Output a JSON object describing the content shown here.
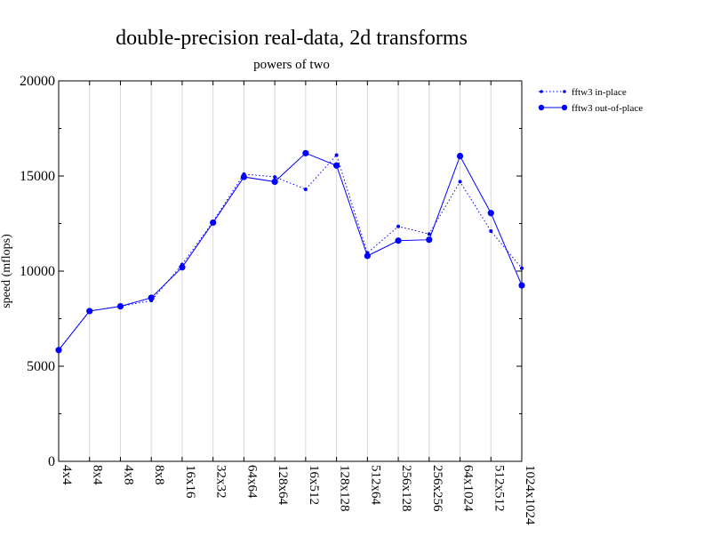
{
  "chart_data": {
    "type": "line",
    "title": "double-precision real-data, 2d transforms",
    "subtitle": "powers of two",
    "xlabel": "",
    "ylabel": "speed (mflops)",
    "ylim": [
      0,
      20000
    ],
    "yticks": [
      0,
      5000,
      10000,
      15000,
      20000
    ],
    "ytick_labels": [
      "0",
      "5000",
      "10000",
      "15000",
      "20000"
    ],
    "grid": "vertical",
    "legend_position": "right",
    "categories": [
      "4x4",
      "8x4",
      "4x8",
      "8x8",
      "16x16",
      "32x32",
      "64x64",
      "128x64",
      "16x512",
      "128x128",
      "512x64",
      "256x128",
      "256x256",
      "64x1024",
      "512x512",
      "1024x1024"
    ],
    "series": [
      {
        "name": "fftw3 in-place",
        "color": "#0000ff",
        "line_style": "dotted",
        "marker": "small-circle",
        "values": [
          5850,
          7900,
          8150,
          8450,
          10350,
          12600,
          15100,
          14950,
          14300,
          16100,
          10950,
          12350,
          11950,
          14700,
          12100,
          10150
        ]
      },
      {
        "name": "fftw3 out-of-place",
        "color": "#0000ff",
        "line_style": "solid",
        "marker": "large-circle",
        "values": [
          5850,
          7900,
          8150,
          8600,
          10200,
          12550,
          14950,
          14700,
          16200,
          15550,
          10800,
          11600,
          11650,
          16050,
          13050,
          9250
        ]
      }
    ]
  }
}
